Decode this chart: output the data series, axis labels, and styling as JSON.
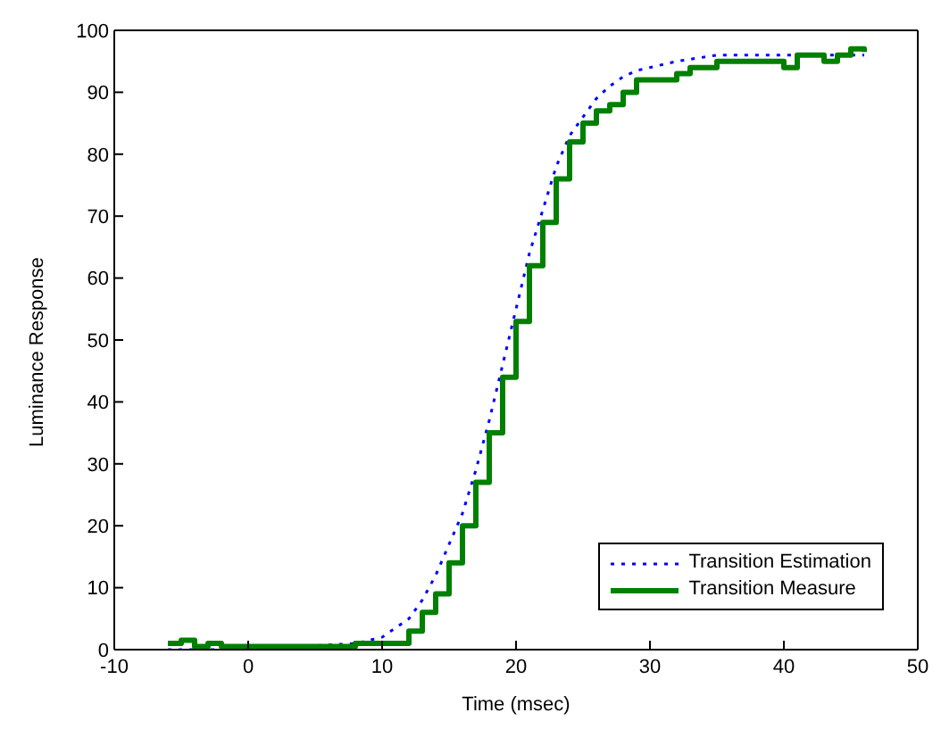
{
  "chart_data": {
    "type": "line",
    "xlabel": "Time (msec)",
    "ylabel": "Luminance Response",
    "xlim": [
      -10,
      50
    ],
    "xticks": [
      -10,
      0,
      10,
      20,
      30,
      40,
      50
    ],
    "ylim": [
      0,
      100
    ],
    "yticks": [
      0,
      10,
      20,
      30,
      40,
      50,
      60,
      70,
      80,
      90,
      100
    ],
    "grid": false,
    "legend": "bottom right",
    "series": [
      {
        "name": "Transition Estimation",
        "color": "#0000ff",
        "line_style": "dotted",
        "x": [
          -6,
          0,
          6,
          8,
          10,
          12,
          13,
          14,
          15,
          16,
          17,
          18,
          19,
          20,
          21,
          22,
          23,
          24,
          25,
          26,
          27,
          28,
          29,
          30,
          32,
          35,
          38,
          42,
          46
        ],
        "values": [
          0,
          0,
          null,
          1,
          2,
          5,
          8,
          12,
          17,
          22,
          29,
          37,
          46,
          55,
          64,
          71,
          78,
          83,
          86,
          89,
          91,
          92.5,
          93.5,
          94,
          95,
          96,
          96,
          null,
          96
        ]
      },
      {
        "name": "Transition Measure",
        "type": "step",
        "color": "#008000",
        "line_style": "solid",
        "x": [
          -6,
          -5,
          -4,
          -3,
          -2,
          0,
          2,
          4,
          6,
          8,
          10,
          11,
          12,
          13,
          14,
          15,
          16,
          17,
          18,
          19,
          20,
          21,
          22,
          23,
          24,
          25,
          26,
          27,
          28,
          29,
          30,
          31,
          32,
          33,
          34,
          35,
          36,
          37,
          38,
          39,
          40,
          41,
          42,
          43,
          44,
          45,
          46
        ],
        "values": [
          1,
          1.5,
          0.5,
          1,
          0.5,
          0.5,
          0.5,
          0.5,
          0.5,
          1,
          1,
          1,
          3,
          6,
          9,
          14,
          20,
          27,
          35,
          44,
          53,
          62,
          69,
          76,
          82,
          85,
          87,
          88,
          90,
          92,
          92,
          92,
          93,
          94,
          94,
          95,
          95,
          95,
          95,
          95,
          94,
          96,
          96,
          95,
          96,
          97,
          96.5
        ]
      }
    ]
  }
}
